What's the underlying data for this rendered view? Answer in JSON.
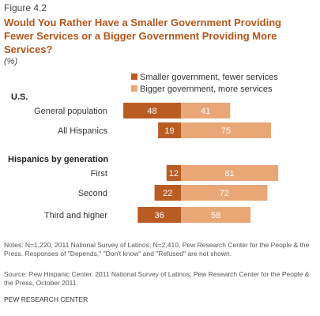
{
  "figure_label": "Figure 4.2",
  "title": "Would You Rather Have a Smaller Government Providing Fewer Services or a Bigger Government Providing More Services?",
  "unit": "(%)",
  "notes": "Notes: N=1,220, 2011 National Survey of Latinos; N=2,410, Pew Research Center for the People & the Press. Responses of \"Depends,\" \"Don't know\" and \"Refused\" are not shown.",
  "source": "Source: Pew Hispanic Center, 2011 National Survey of Latinos; Pew Research Center for the People & the Press, October 2011",
  "footer": "PEW RESEARCH CENTER",
  "colors": {
    "smaller": "#b85c23",
    "bigger": "#e9a777",
    "title": "#b5561a"
  },
  "chart_data": {
    "type": "bar",
    "orientation": "horizontal-diverging",
    "series": [
      {
        "name": "Smaller government, fewer services",
        "color": "#b85c23"
      },
      {
        "name": "Bigger government, more services",
        "color": "#e9a777"
      }
    ],
    "groups": [
      {
        "label": "U.S.",
        "rows": [
          {
            "label": "General population",
            "smaller": 48,
            "bigger": 41
          }
        ]
      },
      {
        "label": "All Hispanics",
        "header_hidden": true,
        "rows": [
          {
            "label": "All Hispanics",
            "smaller": 19,
            "bigger": 75
          }
        ]
      },
      {
        "label": "Hispanics by generation",
        "rows": [
          {
            "label": "First",
            "smaller": 12,
            "bigger": 81
          },
          {
            "label": "Second",
            "smaller": 22,
            "bigger": 72
          },
          {
            "label": "Third and higher",
            "smaller": 36,
            "bigger": 58
          }
        ]
      }
    ]
  }
}
